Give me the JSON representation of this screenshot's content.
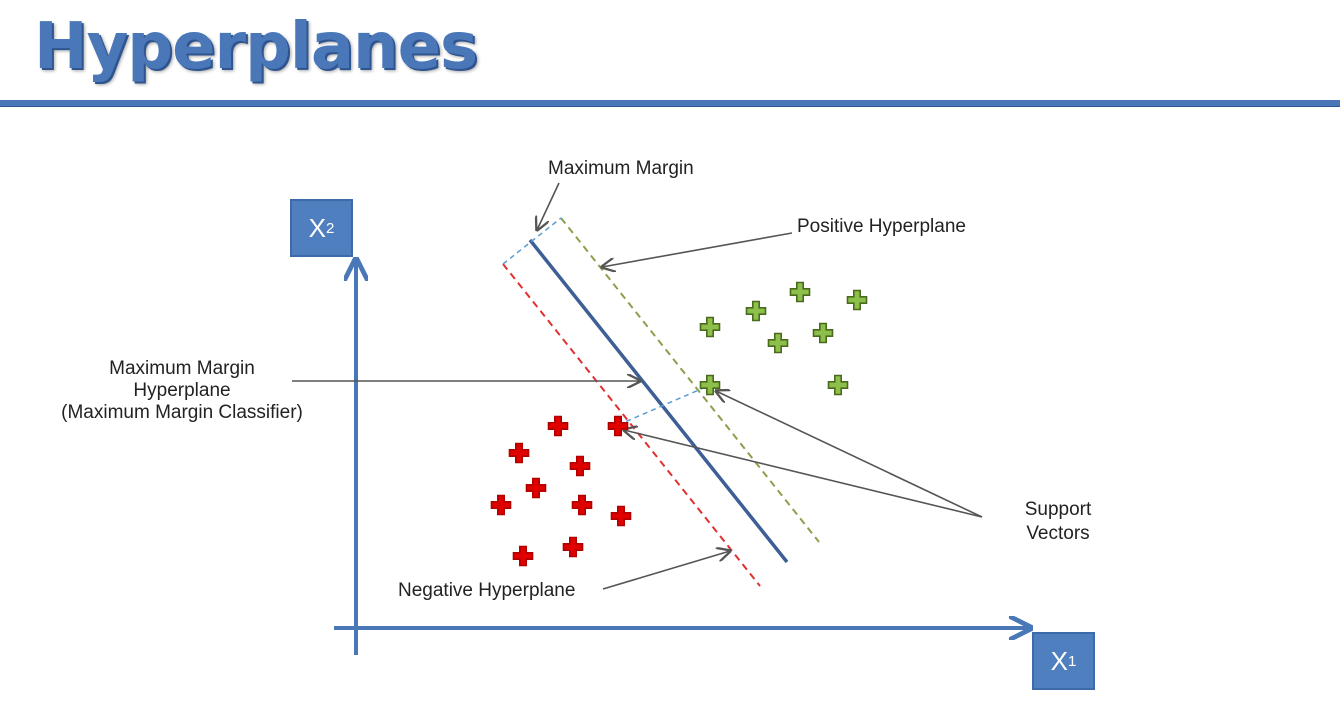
{
  "title": "Hyperplanes",
  "axes": {
    "x_label": "X",
    "x_subscript": "1",
    "y_label": "X",
    "y_subscript": "2"
  },
  "annotations": {
    "maximum_margin": "Maximum Margin",
    "positive_hyperplane": "Positive Hyperplane",
    "mmh_line1": "Maximum Margin",
    "mmh_line2": "Hyperplane",
    "mmh_line3": "(Maximum Margin Classifier)",
    "support_vectors_line1": "Support",
    "support_vectors_line2": "Vectors",
    "negative_hyperplane": "Negative Hyperplane"
  },
  "colors": {
    "accent": "#4a77b8",
    "positive_class": "#8cc04a",
    "negative_class": "#e00000",
    "positive_hyperplane": "#8aa04a",
    "negative_hyperplane": "#e03030",
    "margin_line": "#5b9bd5",
    "classifier_line": "#3d5f96"
  }
}
